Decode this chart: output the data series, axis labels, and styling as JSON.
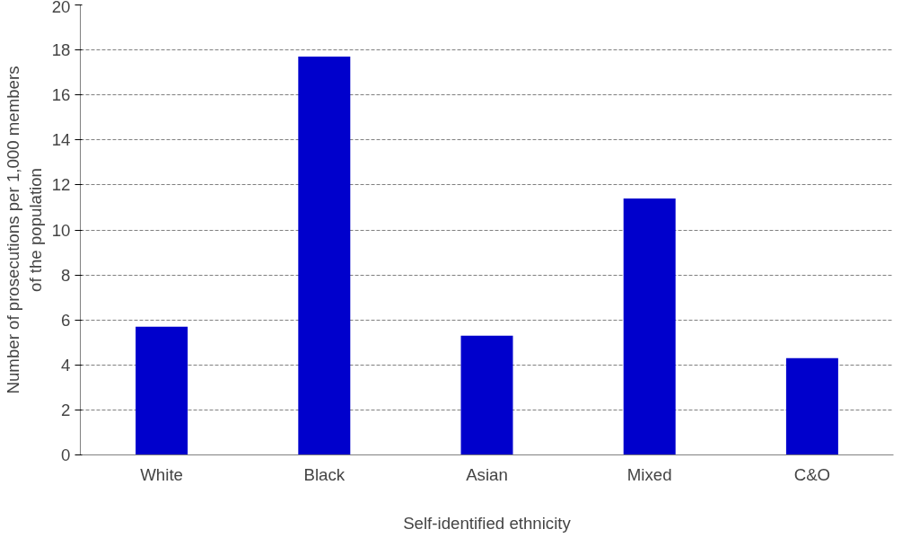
{
  "chart_data": {
    "type": "bar",
    "xlabel": "Self-identified ethnicity",
    "ylabel": "Number of prosecutions per 1,000 members\nof the population",
    "categories": [
      "White",
      "Black",
      "Asian",
      "Mixed",
      "C&O"
    ],
    "values": [
      5.7,
      17.7,
      5.3,
      11.4,
      4.3
    ],
    "color": "#0000cc",
    "ylim": [
      0,
      20
    ],
    "yticks": [
      0,
      2,
      4,
      6,
      8,
      10,
      12,
      14,
      16,
      18,
      20
    ],
    "grid": "y"
  }
}
